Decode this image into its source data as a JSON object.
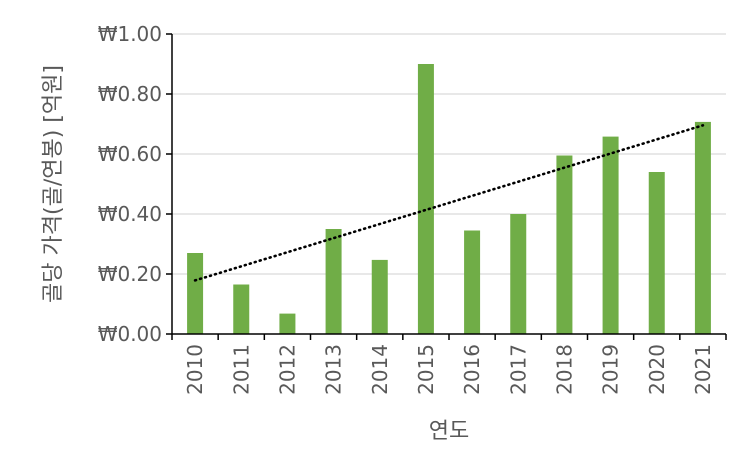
{
  "chart_data": {
    "type": "bar",
    "categories": [
      "2010",
      "2011",
      "2012",
      "2013",
      "2014",
      "2015",
      "2016",
      "2017",
      "2018",
      "2019",
      "2020",
      "2021"
    ],
    "values": [
      0.27,
      0.165,
      0.068,
      0.35,
      0.247,
      0.9,
      0.345,
      0.4,
      0.595,
      0.658,
      0.54,
      0.707
    ],
    "xlabel": "연도",
    "ylabel": "골당 가격(골/연봉) [억원]",
    "ylim": [
      0,
      1.0
    ],
    "yticks": [
      0,
      0.2,
      0.4,
      0.6,
      0.8,
      1.0
    ],
    "ytick_labels": [
      "₩0.00",
      "₩0.20",
      "₩0.40",
      "₩0.60",
      "₩0.80",
      "₩1.00"
    ],
    "trendline": {
      "type": "linear",
      "style": "dotted",
      "color": "#000000"
    },
    "grid": true,
    "bar_color": "#70AD47",
    "grid_color": "#D9D9D9",
    "axis_color": "#000000",
    "text_color": "#595959"
  }
}
